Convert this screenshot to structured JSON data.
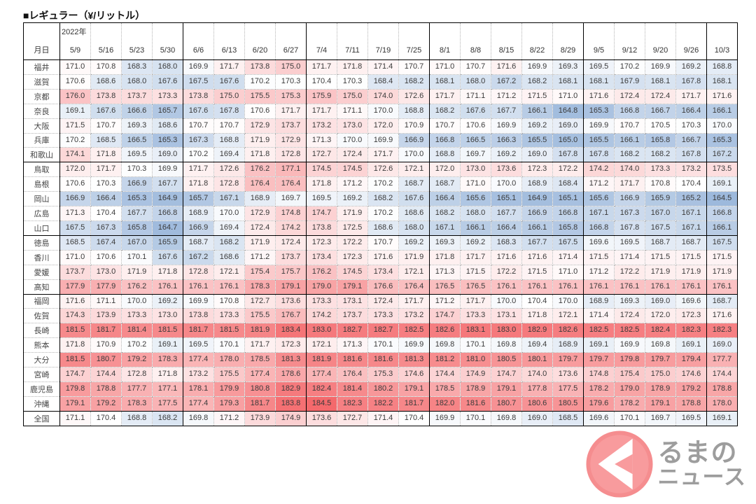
{
  "title": "■レギュラー（¥/リットル）",
  "logo": {
    "line1": "るまの",
    "line2": "ニュース",
    "circle_color": "#f89b9d",
    "ring_color": "#f58d8f",
    "text_color": "#9d9d9d"
  },
  "color_scale": {
    "min_value": 164.5,
    "mid_value": 170.4,
    "max_value": 184.5,
    "min_color": "#9db9dc",
    "mid_color": "#ffffff",
    "max_color": "#f4696c"
  },
  "table": {
    "year_label": "2022年",
    "corner_label": "月日",
    "columns": [
      "5/9",
      "5/16",
      "5/23",
      "5/30",
      "6/6",
      "6/13",
      "6/20",
      "6/27",
      "7/4",
      "7/11",
      "7/19",
      "7/25",
      "8/1",
      "8/8",
      "8/15",
      "8/22",
      "8/29",
      "9/5",
      "9/12",
      "9/20",
      "9/26",
      "10/3"
    ],
    "month_group_ends": [
      3,
      7,
      11,
      16,
      20
    ],
    "rows": [
      {
        "name": "福井",
        "values": [
          171.0,
          170.8,
          168.3,
          168.0,
          169.9,
          171.7,
          173.8,
          175.0,
          171.7,
          171.8,
          171.4,
          170.7,
          171.0,
          170.7,
          171.6,
          169.9,
          169.3,
          169.5,
          170.2,
          169.9,
          169.2,
          168.8
        ]
      },
      {
        "name": "滋賀",
        "values": [
          170.6,
          168.6,
          168.0,
          167.6,
          167.5,
          167.6,
          170.2,
          170.3,
          170.4,
          170.3,
          168.4,
          168.2,
          168.1,
          168.0,
          167.2,
          168.2,
          168.1,
          168.1,
          167.9,
          168.1,
          167.8,
          168.1
        ]
      },
      {
        "name": "京都",
        "values": [
          176.0,
          173.8,
          173.7,
          173.3,
          173.8,
          175.0,
          175.5,
          175.3,
          175.9,
          175.0,
          174.0,
          172.6,
          171.7,
          171.1,
          171.2,
          171.5,
          171.0,
          171.6,
          172.4,
          172.4,
          171.7,
          171.6
        ]
      },
      {
        "name": "奈良",
        "values": [
          169.1,
          167.6,
          166.6,
          165.7,
          167.6,
          167.8,
          170.6,
          171.7,
          171.7,
          171.1,
          170.0,
          168.8,
          168.2,
          167.6,
          167.7,
          166.1,
          164.8,
          165.3,
          166.8,
          166.7,
          166.4,
          166.1
        ]
      },
      {
        "name": "大阪",
        "values": [
          171.5,
          170.7,
          169.3,
          168.6,
          170.7,
          170.7,
          172.9,
          173.7,
          173.2,
          173.0,
          172.0,
          170.9,
          170.7,
          170.6,
          169.9,
          169.2,
          169.0,
          169.9,
          170.7,
          170.5,
          170.3,
          170.0
        ]
      },
      {
        "name": "兵庫",
        "values": [
          170.2,
          168.5,
          166.5,
          165.3,
          167.3,
          168.8,
          171.9,
          172.9,
          171.3,
          170.0,
          169.9,
          166.9,
          166.8,
          166.5,
          166.3,
          165.5,
          165.0,
          165.5,
          166.1,
          165.8,
          166.7,
          165.3
        ]
      },
      {
        "name": "和歌山",
        "values": [
          174.1,
          171.8,
          169.5,
          169.0,
          170.2,
          169.4,
          171.8,
          172.8,
          172.7,
          172.4,
          171.7,
          170.0,
          168.8,
          169.7,
          169.2,
          169.0,
          167.8,
          167.8,
          168.2,
          168.2,
          167.8,
          167.2
        ],
        "group_end": true
      },
      {
        "name": "鳥取",
        "values": [
          172.0,
          171.7,
          170.3,
          169.9,
          171.7,
          172.6,
          176.2,
          177.1,
          174.5,
          174.5,
          172.6,
          172.1,
          172.0,
          173.0,
          173.6,
          172.3,
          172.2,
          174.2,
          174.0,
          173.3,
          173.2,
          173.5
        ]
      },
      {
        "name": "島根",
        "values": [
          170.6,
          170.3,
          166.9,
          167.7,
          171.8,
          172.8,
          176.4,
          176.4,
          171.8,
          171.2,
          170.2,
          168.7,
          168.7,
          171.0,
          170.0,
          168.9,
          168.4,
          171.2,
          171.7,
          170.8,
          170.4,
          169.1
        ]
      },
      {
        "name": "岡山",
        "values": [
          166.9,
          166.4,
          165.3,
          164.9,
          165.7,
          167.1,
          168.9,
          169.7,
          169.5,
          169.2,
          168.2,
          167.6,
          166.4,
          165.6,
          165.1,
          164.9,
          165.1,
          165.6,
          166.9,
          165.9,
          165.2,
          164.5
        ]
      },
      {
        "name": "広島",
        "values": [
          171.3,
          170.4,
          167.7,
          166.8,
          168.9,
          170.0,
          172.9,
          174.8,
          174.7,
          171.9,
          170.2,
          168.6,
          168.2,
          168.0,
          167.7,
          166.9,
          166.8,
          167.1,
          167.3,
          167.0,
          167.1,
          166.8
        ]
      },
      {
        "name": "山口",
        "values": [
          167.5,
          167.3,
          165.8,
          164.7,
          166.9,
          169.4,
          172.4,
          174.2,
          173.8,
          172.5,
          168.6,
          168.0,
          167.1,
          166.1,
          166.4,
          166.1,
          165.8,
          166.8,
          167.8,
          167.5,
          167.1,
          166.1
        ],
        "group_end": true
      },
      {
        "name": "徳島",
        "values": [
          168.5,
          167.4,
          167.0,
          165.9,
          168.7,
          168.2,
          171.9,
          172.4,
          172.3,
          172.2,
          170.7,
          169.2,
          169.3,
          169.2,
          168.3,
          167.7,
          167.5,
          169.6,
          169.5,
          168.7,
          168.7,
          167.5
        ]
      },
      {
        "name": "香川",
        "values": [
          171.0,
          170.6,
          170.1,
          167.6,
          167.2,
          168.6,
          171.2,
          173.7,
          173.4,
          172.3,
          171.6,
          171.9,
          171.8,
          171.7,
          171.6,
          171.6,
          171.4,
          171.5,
          171.4,
          171.5,
          171.5,
          171.5
        ]
      },
      {
        "name": "愛媛",
        "values": [
          173.7,
          173.0,
          171.9,
          171.8,
          172.8,
          172.1,
          175.4,
          175.7,
          176.2,
          174.5,
          173.4,
          172.1,
          171.3,
          171.5,
          172.2,
          171.5,
          171.0,
          171.2,
          172.2,
          171.9,
          171.9,
          171.9
        ]
      },
      {
        "name": "高知",
        "values": [
          177.9,
          177.9,
          176.2,
          176.1,
          176.1,
          176.1,
          178.3,
          179.1,
          179.0,
          179.1,
          176.6,
          176.4,
          176.5,
          176.5,
          176.1,
          176.1,
          176.1,
          176.1,
          176.1,
          176.1,
          176.1,
          176.1
        ],
        "group_end": true
      },
      {
        "name": "福岡",
        "values": [
          171.6,
          171.1,
          170.0,
          169.2,
          169.9,
          170.8,
          172.7,
          173.6,
          173.3,
          173.1,
          172.4,
          171.7,
          171.2,
          171.7,
          170.0,
          170.4,
          170.0,
          168.9,
          169.3,
          169.0,
          169.6,
          168.7
        ]
      },
      {
        "name": "佐賀",
        "values": [
          174.3,
          173.9,
          173.3,
          173.0,
          173.8,
          173.3,
          175.5,
          176.7,
          174.2,
          173.7,
          173.3,
          173.2,
          174.7,
          173.3,
          173.1,
          171.8,
          172.1,
          171.4,
          172.4,
          172.0,
          172.3,
          171.6
        ]
      },
      {
        "name": "長崎",
        "values": [
          181.5,
          181.7,
          181.4,
          181.5,
          181.7,
          181.5,
          181.9,
          183.4,
          183.0,
          182.7,
          182.7,
          182.5,
          182.6,
          183.1,
          183.0,
          182.9,
          182.6,
          182.5,
          182.5,
          182.4,
          182.3,
          182.3
        ]
      },
      {
        "name": "熊本",
        "values": [
          171.8,
          170.9,
          170.2,
          169.1,
          169.5,
          170.1,
          171.7,
          172.3,
          172.1,
          171.3,
          170.1,
          169.9,
          169.8,
          170.1,
          169.8,
          169.4,
          168.9,
          169.1,
          169.9,
          169.8,
          169.1,
          169.0
        ]
      },
      {
        "name": "大分",
        "values": [
          181.5,
          180.7,
          179.2,
          178.3,
          177.4,
          178.0,
          178.5,
          181.3,
          181.9,
          181.6,
          181.6,
          181.3,
          181.2,
          181.0,
          180.5,
          180.1,
          179.7,
          179.7,
          179.8,
          179.7,
          179.4,
          177.7
        ]
      },
      {
        "name": "宮崎",
        "values": [
          174.7,
          174.4,
          172.8,
          171.8,
          173.2,
          175.5,
          177.4,
          178.6,
          177.4,
          176.4,
          175.3,
          174.6,
          174.4,
          174.9,
          174.7,
          174.0,
          173.6,
          174.8,
          175.4,
          175.0,
          174.6,
          174.4
        ]
      },
      {
        "name": "鹿児島",
        "values": [
          179.8,
          178.8,
          177.7,
          177.1,
          178.1,
          179.9,
          180.8,
          182.9,
          182.4,
          181.4,
          180.2,
          179.1,
          178.5,
          178.9,
          179.1,
          177.8,
          177.5,
          178.2,
          179.0,
          178.9,
          179.2,
          178.8
        ]
      },
      {
        "name": "沖縄",
        "values": [
          179.1,
          179.2,
          178.3,
          177.5,
          177.4,
          179.3,
          181.7,
          183.8,
          184.5,
          182.3,
          182.2,
          181.7,
          182.0,
          181.6,
          180.7,
          180.6,
          180.5,
          179.6,
          178.2,
          179.1,
          178.8,
          178.0
        ],
        "group_end": true
      },
      {
        "name": "全国",
        "values": [
          171.1,
          170.4,
          168.8,
          168.2,
          169.8,
          171.2,
          173.9,
          174.9,
          173.6,
          172.7,
          171.4,
          170.4,
          169.9,
          170.1,
          169.8,
          169.0,
          168.5,
          169.6,
          170.1,
          169.7,
          169.5,
          169.1
        ]
      }
    ]
  }
}
